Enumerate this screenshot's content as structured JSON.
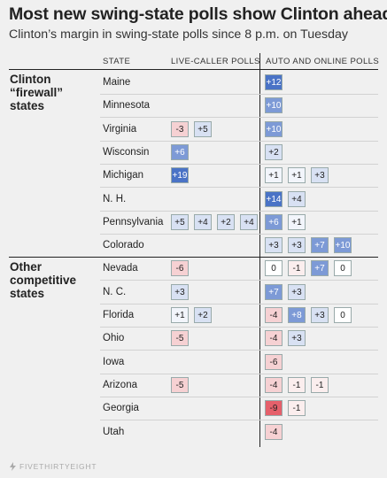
{
  "header": {
    "title": "Most new swing-state polls show Clinton ahead",
    "subtitle": "Clinton’s margin in swing-state polls since 8 p.m. on Tuesday"
  },
  "columns": {
    "state": "STATE",
    "live": "LIVE-CALLER POLLS",
    "auto": "AUTO AND ONLINE POLLS"
  },
  "groups": [
    {
      "label_lines": [
        "Clinton",
        "“firewall”",
        "states"
      ]
    },
    {
      "label_lines": [
        "Other",
        "competitive",
        "states"
      ]
    }
  ],
  "footer": {
    "brand": "FIVETHIRTYEIGHT",
    "brand_icon": "bolt-icon"
  },
  "colors": {
    "strong_blue": "#4a73c6",
    "mid_blue": "#7d9ad6",
    "light_blue": "#d8e1f3",
    "pale_blue": "#f2f5fb",
    "strong_red": "#e5606b",
    "light_red": "#f6d1d3",
    "pale_red": "#fbeeee"
  },
  "chart_data": {
    "type": "table",
    "title": "Most new swing-state polls show Clinton ahead",
    "subtitle": "Clinton’s margin in swing-state polls since 8 p.m. on Tuesday",
    "columns": [
      "STATE",
      "LIVE-CALLER POLLS",
      "AUTO AND ONLINE POLLS"
    ],
    "rows": [
      {
        "group": 0,
        "state": "Maine",
        "live": [],
        "auto": [
          12
        ]
      },
      {
        "group": 0,
        "state": "Minnesota",
        "live": [],
        "auto": [
          10
        ]
      },
      {
        "group": 0,
        "state": "Virginia",
        "live": [
          -3,
          5
        ],
        "auto": [
          10
        ]
      },
      {
        "group": 0,
        "state": "Wisconsin",
        "live": [
          6
        ],
        "auto": [
          2
        ]
      },
      {
        "group": 0,
        "state": "Michigan",
        "live": [
          19
        ],
        "auto": [
          1,
          1,
          3
        ]
      },
      {
        "group": 0,
        "state": "N. H.",
        "live": [],
        "auto": [
          14,
          4
        ]
      },
      {
        "group": 0,
        "state": "Pennsylvania",
        "live": [
          5,
          4,
          2,
          4
        ],
        "auto": [
          6,
          1
        ]
      },
      {
        "group": 0,
        "state": "Colorado",
        "live": [],
        "auto": [
          3,
          3,
          7,
          10
        ]
      },
      {
        "group": 1,
        "state": "Nevada",
        "live": [
          -6
        ],
        "auto": [
          0,
          -1,
          7,
          0
        ]
      },
      {
        "group": 1,
        "state": "N. C.",
        "live": [
          3
        ],
        "auto": [
          7,
          3
        ]
      },
      {
        "group": 1,
        "state": "Florida",
        "live": [
          1,
          2
        ],
        "auto": [
          -4,
          8,
          3,
          0
        ]
      },
      {
        "group": 1,
        "state": "Ohio",
        "live": [
          -5
        ],
        "auto": [
          -4,
          3
        ]
      },
      {
        "group": 1,
        "state": "Iowa",
        "live": [],
        "auto": [
          -6
        ]
      },
      {
        "group": 1,
        "state": "Arizona",
        "live": [
          -5
        ],
        "auto": [
          -4,
          -1,
          -1
        ]
      },
      {
        "group": 1,
        "state": "Georgia",
        "live": [],
        "auto": [
          -9,
          -1
        ]
      },
      {
        "group": 1,
        "state": "Utah",
        "live": [],
        "auto": [
          -4
        ]
      }
    ]
  }
}
